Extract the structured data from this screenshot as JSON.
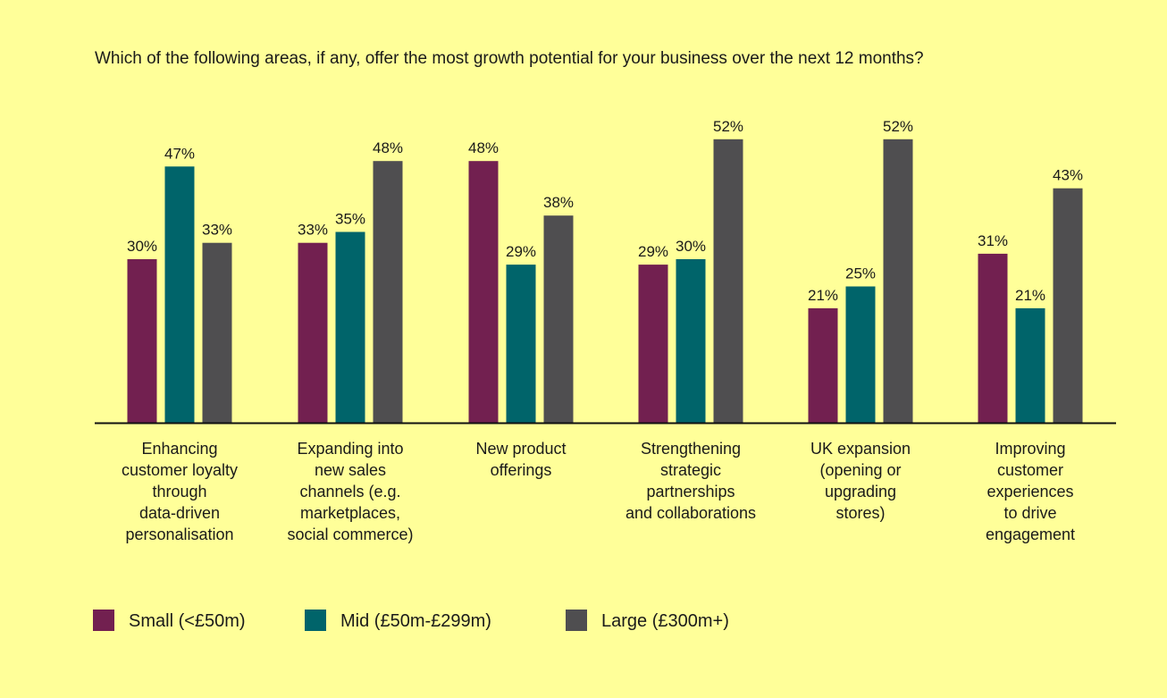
{
  "chart_data": {
    "type": "bar",
    "title": "Which of the following areas, if any, offer the most growth potential for your business over the next 12 months?",
    "xlabel": "",
    "ylabel": "",
    "ylim": [
      0,
      60
    ],
    "grid": false,
    "legend_position": "bottom-left",
    "value_suffix": "%",
    "categories": [
      [
        "Enhancing",
        "customer loyalty",
        "through",
        "data-driven",
        "personalisation"
      ],
      [
        "Expanding into",
        "new sales",
        "channels (e.g.",
        "marketplaces,",
        "social commerce)"
      ],
      [
        "New product",
        "offerings"
      ],
      [
        "Strengthening",
        "strategic",
        "partnerships",
        "and collaborations"
      ],
      [
        "UK expansion",
        "(opening or",
        "upgrading",
        "stores)"
      ],
      [
        "Improving",
        "customer",
        "experiences",
        "to drive",
        "engagement"
      ]
    ],
    "series": [
      {
        "name": "Small (<£50m)",
        "color": "#722050",
        "values": [
          30,
          33,
          48,
          29,
          21,
          31
        ]
      },
      {
        "name": "Mid (£50m-£299m)",
        "color": "#00646a",
        "values": [
          47,
          35,
          29,
          30,
          25,
          21
        ]
      },
      {
        "name": "Large (£300m+)",
        "color": "#4f4e50",
        "values": [
          33,
          48,
          38,
          52,
          52,
          43
        ]
      }
    ]
  }
}
